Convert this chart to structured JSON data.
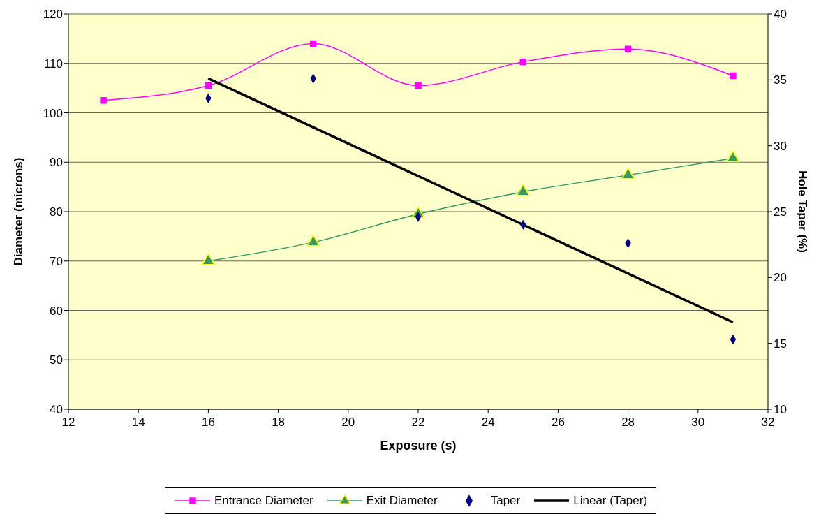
{
  "chart_data": {
    "type": "line",
    "xlabel": "Exposure (s)",
    "ylabel": "Diameter (microns)",
    "y2label": "Hole Taper (%)",
    "x": [
      13,
      16,
      19,
      22,
      25,
      28,
      31
    ],
    "series": [
      {
        "name": "Entrance Diameter",
        "color": "#ff00ff",
        "marker": "square",
        "values": [
          102.5,
          105.5,
          114,
          105.5,
          110.3,
          112.9,
          107.5
        ]
      },
      {
        "name": "Exit Diameter",
        "color": "#339966",
        "marker": "triangle",
        "x": [
          16,
          19,
          22,
          25,
          28,
          31
        ],
        "values": [
          70,
          73.8,
          79.5,
          84,
          87.4,
          90.8
        ]
      },
      {
        "name": "Taper",
        "type": "scatter",
        "color": "#000080",
        "marker": "diamond",
        "axis": "y2",
        "x": [
          16,
          19,
          22,
          25,
          28,
          31
        ],
        "values": [
          33.6,
          35.1,
          24.6,
          24,
          22.6,
          15.3
        ]
      },
      {
        "name": "Linear (Taper)",
        "type": "line",
        "color": "#000000",
        "marker": "none",
        "axis": "y2",
        "x": [
          16,
          31
        ],
        "values": [
          35.1,
          16.6
        ]
      }
    ],
    "xlim": [
      12,
      32
    ],
    "xticks": [
      12,
      14,
      16,
      18,
      20,
      22,
      24,
      26,
      28,
      30,
      32
    ],
    "ylim": [
      40,
      120
    ],
    "yticks": [
      40,
      50,
      60,
      70,
      80,
      90,
      100,
      110,
      120
    ],
    "y2lim": [
      10,
      40
    ],
    "y2ticks": [
      10,
      15,
      20,
      25,
      30,
      35,
      40
    ],
    "grid": "y",
    "legend": "bottom"
  }
}
